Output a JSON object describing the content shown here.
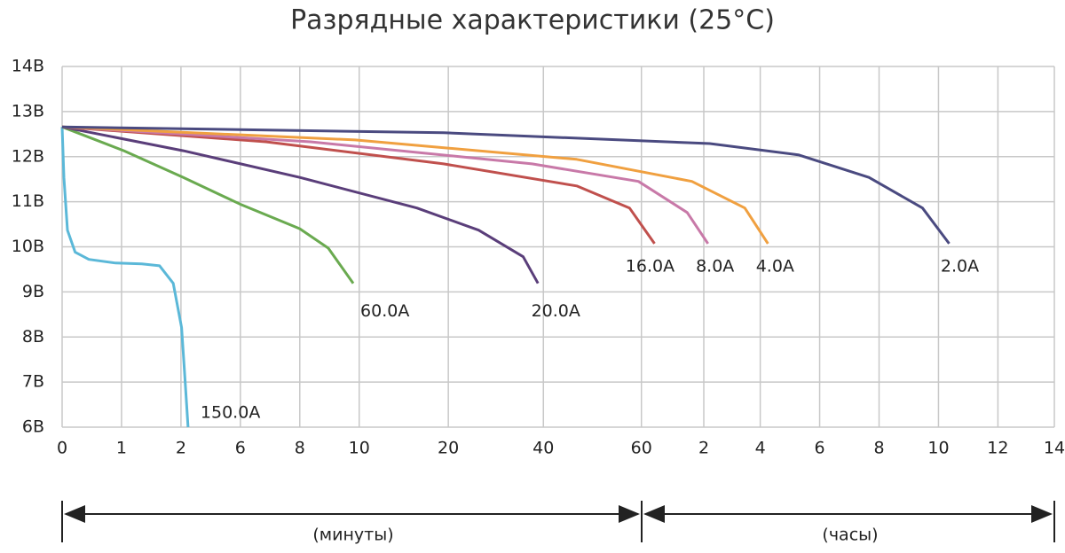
{
  "chart_data": {
    "type": "line",
    "title": "Разрядные характеристики (25°C)",
    "xlim": [
      0,
      16.7
    ],
    "ylim": [
      6,
      14
    ],
    "yticks": [
      {
        "value": 6,
        "label": "6В"
      },
      {
        "value": 7,
        "label": "7В"
      },
      {
        "value": 8,
        "label": "8В"
      },
      {
        "value": 9,
        "label": "9В"
      },
      {
        "value": 10,
        "label": "10В"
      },
      {
        "value": 11,
        "label": "11В"
      },
      {
        "value": 12,
        "label": "12В"
      },
      {
        "value": 13,
        "label": "13В"
      },
      {
        "value": 14,
        "label": "14В"
      }
    ],
    "xticks": [
      {
        "value": 0,
        "label": "0"
      },
      {
        "value": 1,
        "label": "1"
      },
      {
        "value": 2,
        "label": "2"
      },
      {
        "value": 3,
        "label": "6"
      },
      {
        "value": 4,
        "label": "8"
      },
      {
        "value": 5,
        "label": "10"
      },
      {
        "value": 6.5,
        "label": "20"
      },
      {
        "value": 8.1,
        "label": "40"
      },
      {
        "value": 9.75,
        "label": "60"
      },
      {
        "value": 10.8,
        "label": "2"
      },
      {
        "value": 11.75,
        "label": "4"
      },
      {
        "value": 12.75,
        "label": "6"
      },
      {
        "value": 13.75,
        "label": "8"
      },
      {
        "value": 14.75,
        "label": "10"
      },
      {
        "value": 15.75,
        "label": "12"
      },
      {
        "value": 16.7,
        "label": "14"
      }
    ],
    "grid": true,
    "range_labels": [
      "(минуты)",
      "(часы)"
    ],
    "series": [
      {
        "name": "150.0A",
        "color": "#5bb8d8",
        "x": [
          0,
          0.03,
          0.09,
          0.22,
          0.45,
          0.9,
          1.34,
          1.64,
          1.87,
          2.01,
          2.06,
          2.12
        ],
        "values": [
          12.66,
          11.54,
          10.37,
          9.88,
          9.72,
          9.64,
          9.62,
          9.58,
          9.19,
          8.21,
          7.23,
          6.0
        ]
      },
      {
        "name": "60.0A",
        "color": "#6aaa50",
        "x": [
          0,
          1.04,
          2.04,
          2.99,
          4.0,
          4.48,
          4.9
        ],
        "values": [
          12.66,
          12.13,
          11.54,
          10.95,
          10.4,
          9.97,
          9.19
        ]
      },
      {
        "name": "20.0A",
        "color": "#5a3e7a",
        "x": [
          0,
          2.04,
          4.0,
          5.97,
          7.01,
          7.76,
          8.01
        ],
        "values": [
          12.66,
          12.13,
          11.54,
          10.86,
          10.37,
          9.78,
          9.19
        ]
      },
      {
        "name": "16.0A",
        "color": "#c0504d",
        "x": [
          0,
          3.43,
          6.42,
          8.66,
          9.55,
          9.97
        ],
        "values": [
          12.66,
          12.33,
          11.84,
          11.35,
          10.86,
          10.07
        ]
      },
      {
        "name": "8.0A",
        "color": "#c879a8",
        "x": [
          0,
          4.18,
          7.91,
          9.7,
          10.52,
          10.87
        ],
        "values": [
          12.66,
          12.33,
          11.84,
          11.45,
          10.76,
          10.07
        ]
      },
      {
        "name": "4.0A",
        "color": "#f0a040",
        "x": [
          0,
          4.93,
          8.66,
          10.6,
          11.49,
          11.88
        ],
        "values": [
          12.66,
          12.37,
          11.94,
          11.45,
          10.86,
          10.07
        ]
      },
      {
        "name": "2.0A",
        "color": "#4a4a80",
        "x": [
          0,
          6.42,
          10.9,
          12.39,
          13.58,
          14.48,
          14.93
        ],
        "values": [
          12.66,
          12.53,
          12.29,
          12.04,
          11.54,
          10.86,
          10.07
        ]
      }
    ]
  }
}
